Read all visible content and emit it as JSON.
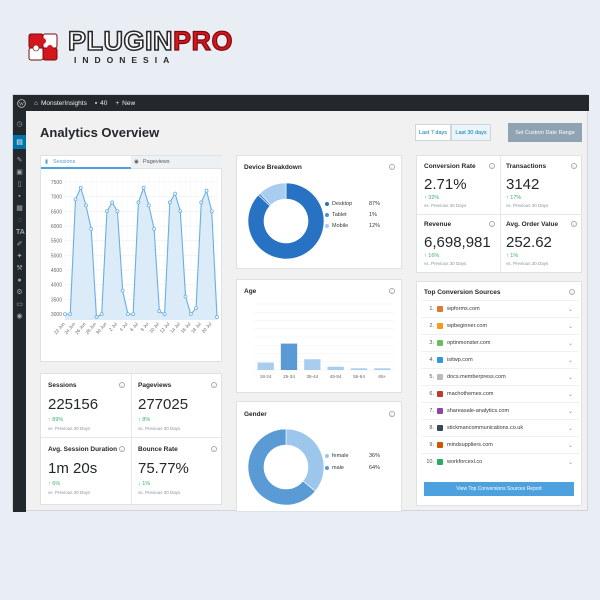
{
  "brand": {
    "main": "PLUGIN",
    "accent": "PRO",
    "sub": "INDONESIA"
  },
  "adminbar": {
    "site": "MonsterInsights",
    "comments": "40",
    "new": "New"
  },
  "page": {
    "title": "Analytics Overview",
    "range_7": "Last 7 days",
    "range_30": "Last 30 days",
    "custom": "Set Custom Date Range"
  },
  "sessions_chart": {
    "tab_sessions": "Sessions",
    "tab_pageviews": "Pageviews",
    "icons": {
      "sessions": "chart-icon",
      "pageviews": "eye-icon"
    }
  },
  "chart_data": [
    {
      "type": "area",
      "title": "Sessions",
      "x": [
        "22 Jun",
        "23 Jun",
        "24 Jun",
        "25 Jun",
        "26 Jun",
        "27 Jun",
        "28 Jun",
        "29 Jun",
        "30 Jun",
        "1 Jul",
        "2 Jul",
        "3 Jul",
        "4 Jul",
        "5 Jul",
        "6 Jul",
        "7 Jul",
        "8 Jul",
        "9 Jul",
        "10 Jul",
        "11 Jul",
        "12 Jul",
        "13 Jul",
        "14 Jul",
        "15 Jul",
        "16 Jul",
        "17 Jul",
        "18 Jul",
        "19 Jul",
        "20 Jul",
        "21 Jul"
      ],
      "tick_labels": [
        "22 Jun",
        "24 Jun",
        "26 Jun",
        "28 Jun",
        "30 Jun",
        "2 Jul",
        "4 Jul",
        "6 Jul",
        "8 Jul",
        "10 Jul",
        "12 Jul",
        "14 Jul",
        "16 Jul",
        "18 Jul",
        "20 Jul"
      ],
      "values": [
        3000,
        3000,
        6900,
        7300,
        6700,
        5900,
        2900,
        3000,
        6500,
        6800,
        6500,
        3800,
        3000,
        3000,
        6800,
        7300,
        6700,
        5900,
        3100,
        3000,
        6800,
        7100,
        6500,
        3600,
        3000,
        3200,
        6800,
        7200,
        6500,
        2900
      ],
      "y_ticks": [
        3000,
        3500,
        4000,
        4500,
        5000,
        5500,
        6000,
        6500,
        7000,
        7500
      ],
      "ylim": [
        2800,
        7700
      ],
      "grid": true
    },
    {
      "type": "pie",
      "title": "Device Breakdown",
      "labels": [
        "Desktop",
        "Tablet",
        "Mobile"
      ],
      "values": [
        87,
        1,
        12
      ],
      "display": [
        "87%",
        "1%",
        "12%"
      ],
      "colors": [
        "#2872c4",
        "#4a90d6",
        "#a8cdef"
      ]
    },
    {
      "type": "bar",
      "title": "Age",
      "categories": [
        "18-24",
        "25-34",
        "35-44",
        "45-54",
        "55-64",
        "65+"
      ],
      "values": [
        9,
        32,
        13,
        4,
        2,
        2
      ],
      "ylim": [
        0,
        80
      ]
    },
    {
      "type": "pie",
      "title": "Gender",
      "labels": [
        "female",
        "male"
      ],
      "values": [
        36,
        64
      ],
      "display": [
        "36%",
        "64%"
      ],
      "colors": [
        "#9cc6ec",
        "#5b9bd5"
      ]
    }
  ],
  "stats": [
    {
      "label": "Sessions",
      "value": "225156",
      "change": "89%",
      "dir": "up",
      "note": "vs. Previous 30 Days"
    },
    {
      "label": "Pageviews",
      "value": "277025",
      "change": "8%",
      "dir": "up",
      "note": "vs. Previous 30 Days"
    },
    {
      "label": "Avg. Session Duration",
      "value": "1m 20s",
      "change": "6%",
      "dir": "up",
      "note": "vs. Previous 30 Days"
    },
    {
      "label": "Bounce Rate",
      "value": "75.77%",
      "change": "1%",
      "dir": "down",
      "note": "vs. Previous 30 Days"
    }
  ],
  "ecom": [
    {
      "label": "Conversion Rate",
      "value": "2.71%",
      "change": "32%",
      "note": "vs. Previous 30 Days"
    },
    {
      "label": "Transactions",
      "value": "3142",
      "change": "17%",
      "note": "vs. Previous 30 Days"
    },
    {
      "label": "Revenue",
      "value": "6,698,981",
      "change": "16%",
      "note": "vs. Previous 30 Days"
    },
    {
      "label": "Avg. Order Value",
      "value": "252.62",
      "change": "1%",
      "note": "vs. Previous 30 Days"
    }
  ],
  "sources": {
    "title": "Top Conversion Sources",
    "items": [
      {
        "n": "1.",
        "name": "wpforms.com",
        "color": "#e27730"
      },
      {
        "n": "2.",
        "name": "wpbeginner.com",
        "color": "#f39c12"
      },
      {
        "n": "3.",
        "name": "optinmonster.com",
        "color": "#6bbf59"
      },
      {
        "n": "4.",
        "name": "isitwp.com",
        "color": "#2d9cdb"
      },
      {
        "n": "5.",
        "name": "docs.memberpress.com",
        "color": "#bbbbbb"
      },
      {
        "n": "6.",
        "name": "machothemes.com",
        "color": "#c0392b"
      },
      {
        "n": "7.",
        "name": "shareasale-analytics.com",
        "color": "#8e44ad"
      },
      {
        "n": "8.",
        "name": "stickmancommunications.co.uk",
        "color": "#34495e"
      },
      {
        "n": "9.",
        "name": "mindsuppliers.com",
        "color": "#d35400"
      },
      {
        "n": "10.",
        "name": "workforcexl.co",
        "color": "#27ae60"
      }
    ],
    "button": "View Top Conversions Sources Report"
  }
}
